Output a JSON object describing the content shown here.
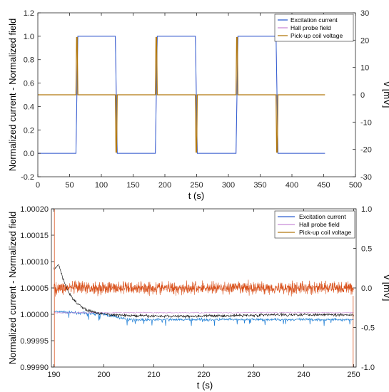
{
  "colors": {
    "excitation": "#2f5fd1",
    "hall": "#c88ad6",
    "pickup": "#b2780f",
    "pickup_zoom": "#d9531e",
    "excitation_zoom": "#1f7fd6",
    "black_trace": "#000000",
    "axis": "#262626"
  },
  "chart_data": [
    {
      "type": "line",
      "xlabel": "t (s)",
      "ylabel_left": "Normalized current - Normalized field",
      "ylabel_right": "v [mV]",
      "xlim": [
        0,
        500
      ],
      "ylim_left": [
        -0.2,
        1.2
      ],
      "ylim_right": [
        -30,
        30
      ],
      "xticks": [
        "0",
        "50",
        "100",
        "150",
        "200",
        "250",
        "300",
        "350",
        "400",
        "450",
        "500"
      ],
      "yticks_left": [
        "-0.2",
        "0.0",
        "0.2",
        "0.4",
        "0.6",
        "0.8",
        "1.0",
        "1.2"
      ],
      "yticks_right": [
        "-30",
        "-20",
        "-10",
        "0",
        "10",
        "20",
        "30"
      ],
      "legend_position": "top-right",
      "series": [
        {
          "name": "Excitation current",
          "axis": "left",
          "x": [
            0,
            60,
            63,
            122,
            125,
            185,
            188,
            248,
            251,
            312,
            315,
            375,
            378,
            452
          ],
          "y": [
            0,
            0,
            1,
            1,
            0,
            0,
            1,
            1,
            0,
            0,
            1,
            1,
            0,
            0
          ]
        },
        {
          "name": "Hall probe field",
          "axis": "left",
          "x": [
            0,
            60,
            63,
            122,
            125,
            185,
            188,
            248,
            251,
            312,
            315,
            375,
            378,
            452
          ],
          "y": [
            0,
            0,
            1,
            1,
            0,
            0,
            1,
            1,
            0,
            0,
            1,
            1,
            0,
            0
          ]
        },
        {
          "name": "Pick-up coil voltage",
          "axis": "right",
          "x": [
            0,
            60,
            61,
            62,
            63,
            64,
            122,
            123,
            124,
            125,
            126,
            185,
            186,
            187,
            188,
            189,
            248,
            249,
            250,
            251,
            252,
            312,
            313,
            314,
            315,
            316,
            375,
            376,
            377,
            378,
            379,
            452
          ],
          "y": [
            0,
            0,
            21,
            21,
            0,
            0,
            0,
            -21,
            -21,
            0,
            0,
            0,
            21,
            21,
            0,
            0,
            0,
            -21,
            -21,
            0,
            0,
            0,
            21,
            21,
            0,
            0,
            0,
            -21,
            -21,
            0,
            0,
            0
          ]
        }
      ]
    },
    {
      "type": "line",
      "xlabel": "t (s)",
      "ylabel_left": "Normalized current - Normalized field",
      "ylabel_right": "v [mV]",
      "xlim": [
        189.5,
        250.5
      ],
      "ylim_left": [
        0.9999,
        1.0002
      ],
      "ylim_right": [
        -1.0,
        1.0
      ],
      "xticks": [
        "190",
        "200",
        "210",
        "220",
        "230",
        "240",
        "250"
      ],
      "yticks_left": [
        "0.99990",
        "0.99995",
        "1.00000",
        "1.00005",
        "1.00010",
        "1.00015",
        "1.00020"
      ],
      "yticks_right": [
        "-1.0",
        "-0.5",
        "0.0",
        "0.5",
        "1.0"
      ],
      "legend_position": "top-right",
      "series": [
        {
          "name": "Excitation current",
          "axis": "left",
          "x": [
            190,
            193,
            196,
            200,
            205,
            210,
            220,
            230,
            240,
            250
          ],
          "y": [
            1.000005,
            1.000004,
            1.000002,
            1.0,
            0.99999,
            0.99999,
            0.99999,
            0.99999,
            0.99999,
            0.99999
          ]
        },
        {
          "name": "Hall probe field",
          "axis": "left",
          "x": [
            190,
            200,
            210,
            220,
            230,
            240,
            250
          ],
          "y": [
            1.000003,
            1.000003,
            1.000003,
            1.000003,
            1.000003,
            1.000003,
            1.000003
          ]
        },
        {
          "name": "Pick-up coil voltage",
          "axis": "right",
          "x": [
            190,
            200,
            210,
            220,
            230,
            240,
            250
          ],
          "y": [
            0.0,
            0.0,
            0.0,
            0.0,
            0.0,
            0.0,
            0.0
          ]
        }
      ]
    }
  ]
}
